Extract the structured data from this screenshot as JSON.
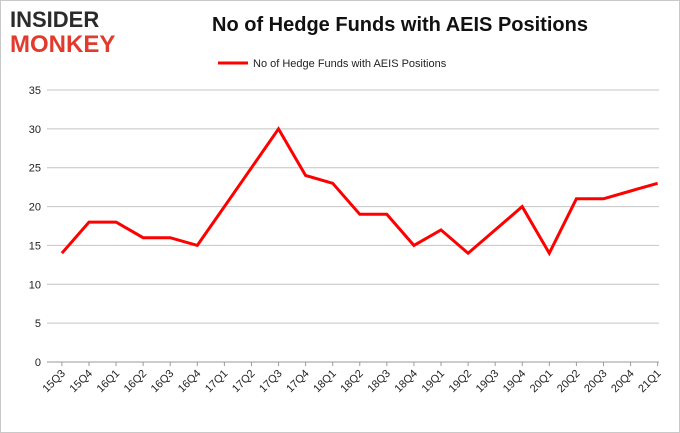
{
  "logo": {
    "line1": "INSIDER",
    "line2": "MONKEY",
    "color_dark": "#2b2b2b",
    "color_accent": "#e23a2c"
  },
  "chart_data": {
    "type": "line",
    "title": "No of Hedge Funds with AEIS Positions",
    "xlabel": "",
    "ylabel": "",
    "categories": [
      "15Q3",
      "15Q4",
      "16Q1",
      "16Q2",
      "16Q3",
      "16Q4",
      "17Q1",
      "17Q2",
      "17Q3",
      "17Q4",
      "18Q1",
      "18Q2",
      "18Q3",
      "18Q4",
      "19Q1",
      "19Q2",
      "19Q3",
      "19Q4",
      "20Q1",
      "20Q2",
      "20Q3",
      "20Q4",
      "21Q1"
    ],
    "series": [
      {
        "name": "No of Hedge Funds with AEIS Positions",
        "color": "#ff0000",
        "values": [
          14,
          18,
          18,
          16,
          16,
          15,
          20,
          25,
          30,
          24,
          23,
          19,
          19,
          15,
          17,
          14,
          17,
          20,
          14,
          21,
          21,
          22,
          23
        ]
      }
    ],
    "ylim": [
      0,
      35
    ],
    "yticks": [
      0,
      5,
      10,
      15,
      20,
      25,
      30,
      35
    ],
    "grid": true,
    "legend_position": "top-center"
  }
}
